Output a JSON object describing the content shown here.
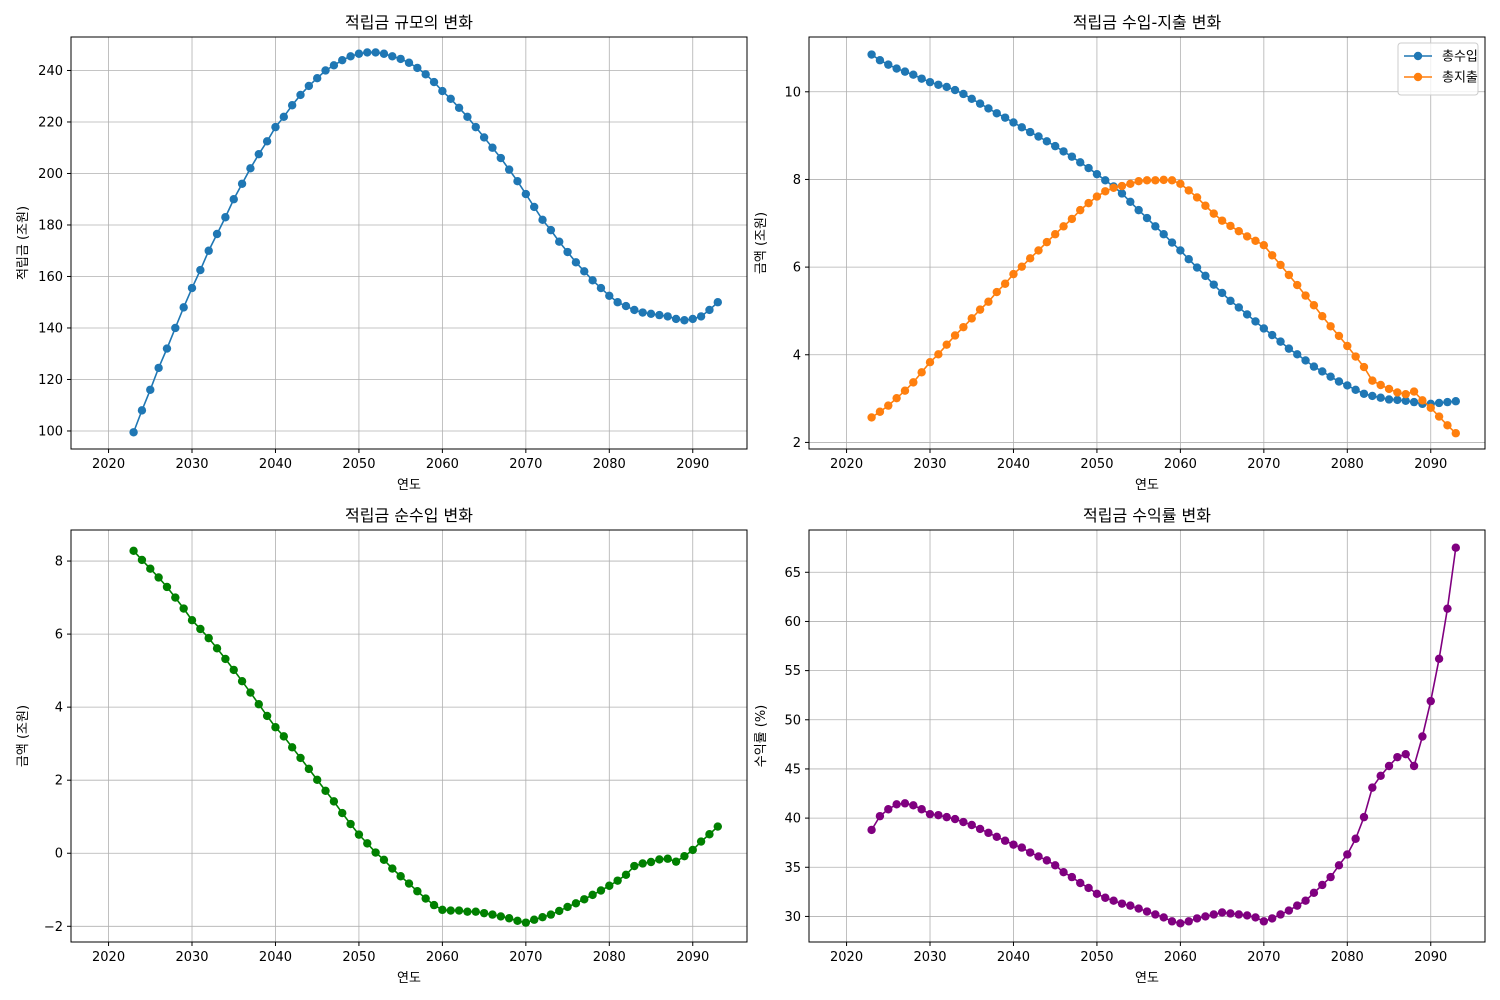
{
  "chart_data": [
    {
      "type": "line",
      "title": "적립금 규모의 변화",
      "xlabel": "연도",
      "ylabel": "적립금 (조원)",
      "xlim": [
        2015.5,
        2096.5
      ],
      "ylim": [
        93,
        253
      ],
      "xticks": [
        2020,
        2030,
        2040,
        2050,
        2060,
        2070,
        2080,
        2090
      ],
      "yticks": [
        100,
        120,
        140,
        160,
        180,
        200,
        220,
        240
      ],
      "grid": true,
      "series": [
        {
          "color": "#1f77b4",
          "x": [
            2023,
            2024,
            2025,
            2026,
            2027,
            2028,
            2029,
            2030,
            2031,
            2032,
            2033,
            2034,
            2035,
            2036,
            2037,
            2038,
            2039,
            2040,
            2041,
            2042,
            2043,
            2044,
            2045,
            2046,
            2047,
            2048,
            2049,
            2050,
            2051,
            2052,
            2053,
            2054,
            2055,
            2056,
            2057,
            2058,
            2059,
            2060,
            2061,
            2062,
            2063,
            2064,
            2065,
            2066,
            2067,
            2068,
            2069,
            2070,
            2071,
            2072,
            2073,
            2074,
            2075,
            2076,
            2077,
            2078,
            2079,
            2080,
            2081,
            2082,
            2083,
            2084,
            2085,
            2086,
            2087,
            2088,
            2089,
            2090,
            2091,
            2092,
            2093
          ],
          "y": [
            99.5,
            108,
            116,
            124.5,
            132,
            140,
            148,
            155.5,
            162.5,
            170,
            176.5,
            183,
            190,
            196,
            202,
            207.5,
            212.5,
            218,
            222,
            226.5,
            230.5,
            234,
            237,
            240,
            242,
            244,
            245.5,
            246.5,
            247,
            247,
            246.5,
            245.5,
            244.5,
            243,
            241,
            238.5,
            235.5,
            232,
            229,
            225.5,
            222,
            218,
            214,
            210,
            206,
            201.5,
            197,
            192,
            187,
            182,
            178,
            173.5,
            169.5,
            165.5,
            162,
            158.5,
            155.5,
            152.5,
            150,
            148.5,
            147,
            146,
            145.5,
            145,
            144.5,
            143.5,
            143,
            143.5,
            144.5,
            147,
            150
          ]
        }
      ]
    },
    {
      "type": "line",
      "title": "적립금 수입-지출 변화",
      "xlabel": "연도",
      "ylabel": "금액 (조원)",
      "xlim": [
        2015.5,
        2096.5
      ],
      "ylim": [
        1.85,
        11.25
      ],
      "xticks": [
        2020,
        2030,
        2040,
        2050,
        2060,
        2070,
        2080,
        2090
      ],
      "yticks": [
        2,
        4,
        6,
        8,
        10
      ],
      "grid": true,
      "legend": "top-right",
      "series": [
        {
          "name": "총수입",
          "color": "#1f77b4",
          "x": [
            2023,
            2024,
            2025,
            2026,
            2027,
            2028,
            2029,
            2030,
            2031,
            2032,
            2033,
            2034,
            2035,
            2036,
            2037,
            2038,
            2039,
            2040,
            2041,
            2042,
            2043,
            2044,
            2045,
            2046,
            2047,
            2048,
            2049,
            2050,
            2051,
            2052,
            2053,
            2054,
            2055,
            2056,
            2057,
            2058,
            2059,
            2060,
            2061,
            2062,
            2063,
            2064,
            2065,
            2066,
            2067,
            2068,
            2069,
            2070,
            2071,
            2072,
            2073,
            2074,
            2075,
            2076,
            2077,
            2078,
            2079,
            2080,
            2081,
            2082,
            2083,
            2084,
            2085,
            2086,
            2087,
            2088,
            2089,
            2090,
            2091,
            2092,
            2093
          ],
          "y": [
            10.85,
            10.72,
            10.62,
            10.53,
            10.46,
            10.39,
            10.3,
            10.22,
            10.16,
            10.11,
            10.04,
            9.95,
            9.84,
            9.73,
            9.62,
            9.51,
            9.41,
            9.3,
            9.19,
            9.08,
            8.98,
            8.87,
            8.76,
            8.64,
            8.52,
            8.39,
            8.26,
            8.12,
            7.98,
            7.84,
            7.68,
            7.49,
            7.3,
            7.12,
            6.93,
            6.75,
            6.56,
            6.38,
            6.18,
            5.99,
            5.8,
            5.6,
            5.41,
            5.23,
            5.08,
            4.92,
            4.76,
            4.6,
            4.45,
            4.3,
            4.14,
            4.01,
            3.87,
            3.73,
            3.62,
            3.5,
            3.39,
            3.3,
            3.2,
            3.11,
            3.06,
            3.02,
            2.98,
            2.97,
            2.95,
            2.92,
            2.88,
            2.88,
            2.9,
            2.92,
            2.94
          ]
        },
        {
          "name": "총지출",
          "color": "#ff7f0e",
          "x": [
            2023,
            2024,
            2025,
            2026,
            2027,
            2028,
            2029,
            2030,
            2031,
            2032,
            2033,
            2034,
            2035,
            2036,
            2037,
            2038,
            2039,
            2040,
            2041,
            2042,
            2043,
            2044,
            2045,
            2046,
            2047,
            2048,
            2049,
            2050,
            2051,
            2052,
            2053,
            2054,
            2055,
            2056,
            2057,
            2058,
            2059,
            2060,
            2061,
            2062,
            2063,
            2064,
            2065,
            2066,
            2067,
            2068,
            2069,
            2070,
            2071,
            2072,
            2073,
            2074,
            2075,
            2076,
            2077,
            2078,
            2079,
            2080,
            2081,
            2082,
            2083,
            2084,
            2085,
            2086,
            2087,
            2088,
            2089,
            2090,
            2091,
            2092,
            2093
          ],
          "y": [
            2.57,
            2.7,
            2.84,
            3.01,
            3.18,
            3.37,
            3.6,
            3.83,
            4.01,
            4.23,
            4.44,
            4.63,
            4.83,
            5.03,
            5.21,
            5.43,
            5.62,
            5.84,
            6.01,
            6.2,
            6.38,
            6.57,
            6.75,
            6.93,
            7.1,
            7.3,
            7.46,
            7.61,
            7.73,
            7.81,
            7.85,
            7.9,
            7.96,
            7.98,
            7.98,
            7.99,
            7.98,
            7.9,
            7.75,
            7.59,
            7.4,
            7.22,
            7.06,
            6.94,
            6.82,
            6.7,
            6.6,
            6.5,
            6.27,
            6.05,
            5.82,
            5.59,
            5.35,
            5.13,
            4.88,
            4.65,
            4.43,
            4.2,
            3.96,
            3.72,
            3.41,
            3.31,
            3.22,
            3.14,
            3.1,
            3.16,
            2.96,
            2.79,
            2.59,
            2.39,
            2.21
          ]
        }
      ]
    },
    {
      "type": "line",
      "title": "적립금 순수입 변화",
      "xlabel": "연도",
      "ylabel": "금액 (조원)",
      "xlim": [
        2015.5,
        2096.5
      ],
      "ylim": [
        -2.43,
        8.85
      ],
      "xticks": [
        2020,
        2030,
        2040,
        2050,
        2060,
        2070,
        2080,
        2090
      ],
      "yticks": [
        -2,
        0,
        2,
        4,
        6,
        8
      ],
      "grid": true,
      "series": [
        {
          "color": "#008000",
          "x": [
            2023,
            2024,
            2025,
            2026,
            2027,
            2028,
            2029,
            2030,
            2031,
            2032,
            2033,
            2034,
            2035,
            2036,
            2037,
            2038,
            2039,
            2040,
            2041,
            2042,
            2043,
            2044,
            2045,
            2046,
            2047,
            2048,
            2049,
            2050,
            2051,
            2052,
            2053,
            2054,
            2055,
            2056,
            2057,
            2058,
            2059,
            2060,
            2061,
            2062,
            2063,
            2064,
            2065,
            2066,
            2067,
            2068,
            2069,
            2070,
            2071,
            2072,
            2073,
            2074,
            2075,
            2076,
            2077,
            2078,
            2079,
            2080,
            2081,
            2082,
            2083,
            2084,
            2085,
            2086,
            2087,
            2088,
            2089,
            2090,
            2091,
            2092,
            2093
          ],
          "y": [
            8.28,
            8.03,
            7.79,
            7.55,
            7.29,
            7.0,
            6.7,
            6.38,
            6.14,
            5.89,
            5.61,
            5.32,
            5.02,
            4.71,
            4.4,
            4.08,
            3.76,
            3.45,
            3.2,
            2.9,
            2.61,
            2.31,
            2.01,
            1.71,
            1.42,
            1.1,
            0.8,
            0.51,
            0.27,
            0.02,
            -0.18,
            -0.42,
            -0.63,
            -0.83,
            -1.04,
            -1.24,
            -1.42,
            -1.55,
            -1.57,
            -1.57,
            -1.6,
            -1.6,
            -1.64,
            -1.68,
            -1.73,
            -1.78,
            -1.85,
            -1.9,
            -1.82,
            -1.75,
            -1.68,
            -1.58,
            -1.47,
            -1.37,
            -1.26,
            -1.14,
            -1.02,
            -0.89,
            -0.75,
            -0.59,
            -0.35,
            -0.28,
            -0.24,
            -0.17,
            -0.15,
            -0.23,
            -0.08,
            0.09,
            0.32,
            0.52,
            0.73
          ]
        }
      ]
    },
    {
      "type": "line",
      "title": "적립금 수익률 변화",
      "xlabel": "연도",
      "ylabel": "수익률 (%)",
      "xlim": [
        2015.5,
        2096.5
      ],
      "ylim": [
        27.4,
        69.3
      ],
      "xticks": [
        2020,
        2030,
        2040,
        2050,
        2060,
        2070,
        2080,
        2090
      ],
      "yticks": [
        30,
        35,
        40,
        45,
        50,
        55,
        60,
        65
      ],
      "grid": true,
      "series": [
        {
          "color": "#800080",
          "x": [
            2023,
            2024,
            2025,
            2026,
            2027,
            2028,
            2029,
            2030,
            2031,
            2032,
            2033,
            2034,
            2035,
            2036,
            2037,
            2038,
            2039,
            2040,
            2041,
            2042,
            2043,
            2044,
            2045,
            2046,
            2047,
            2048,
            2049,
            2050,
            2051,
            2052,
            2053,
            2054,
            2055,
            2056,
            2057,
            2058,
            2059,
            2060,
            2061,
            2062,
            2063,
            2064,
            2065,
            2066,
            2067,
            2068,
            2069,
            2070,
            2071,
            2072,
            2073,
            2074,
            2075,
            2076,
            2077,
            2078,
            2079,
            2080,
            2081,
            2082,
            2083,
            2084,
            2085,
            2086,
            2087,
            2088,
            2089,
            2090,
            2091,
            2092,
            2093
          ],
          "y": [
            38.8,
            40.2,
            40.9,
            41.4,
            41.5,
            41.3,
            40.9,
            40.4,
            40.3,
            40.1,
            39.9,
            39.6,
            39.3,
            38.9,
            38.5,
            38.1,
            37.7,
            37.3,
            37.0,
            36.5,
            36.1,
            35.7,
            35.2,
            34.5,
            34.0,
            33.4,
            32.9,
            32.3,
            31.9,
            31.6,
            31.3,
            31.1,
            30.8,
            30.5,
            30.2,
            29.9,
            29.5,
            29.3,
            29.5,
            29.8,
            30.0,
            30.2,
            30.4,
            30.3,
            30.2,
            30.1,
            29.9,
            29.5,
            29.8,
            30.2,
            30.6,
            31.1,
            31.6,
            32.4,
            33.2,
            34.0,
            35.2,
            36.3,
            37.9,
            40.1,
            43.1,
            44.3,
            45.3,
            46.2,
            46.5,
            45.3,
            48.3,
            51.9,
            56.2,
            61.3,
            67.5
          ]
        }
      ]
    }
  ]
}
